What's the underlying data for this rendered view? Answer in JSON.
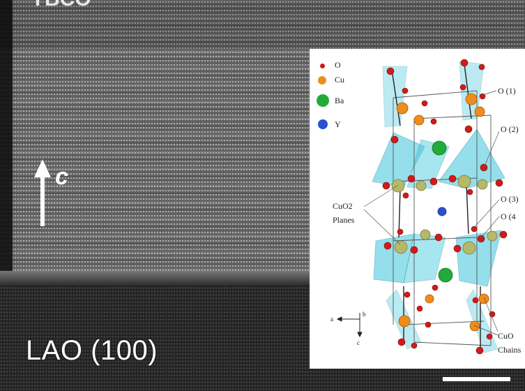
{
  "micrograph": {
    "substrate_label": "LAO (100)",
    "axis_label": "c",
    "top_partial_label": "YBCO",
    "colors": {
      "film": "#6e6e6e",
      "substrate": "#2b2b2b",
      "text": "#ffffff"
    }
  },
  "inset": {
    "legend": [
      {
        "symbol": "O",
        "color": "#d11a1a",
        "icon": "oxygen-atom-icon"
      },
      {
        "symbol": "Cu",
        "color": "#f08c1a",
        "icon": "copper-atom-icon"
      },
      {
        "symbol": "Ba",
        "color": "#22aa3a",
        "icon": "barium-atom-icon"
      },
      {
        "symbol": "Y",
        "color": "#2a4fd0",
        "icon": "yttrium-atom-icon"
      }
    ],
    "site_labels": {
      "o1": "O (1)",
      "o2": "O (2)",
      "o3": "O (3)",
      "o4": "O (4",
      "planes_line1": "CuO2",
      "planes_line2": "Planes",
      "chains_line1": "CuO",
      "chains_line2": "Chains"
    },
    "axes": {
      "a": "a",
      "b": "b",
      "c": "c"
    },
    "colors": {
      "polyhedra": "#3ec6dc",
      "cu_plane_atom": "#b6b86a"
    }
  }
}
